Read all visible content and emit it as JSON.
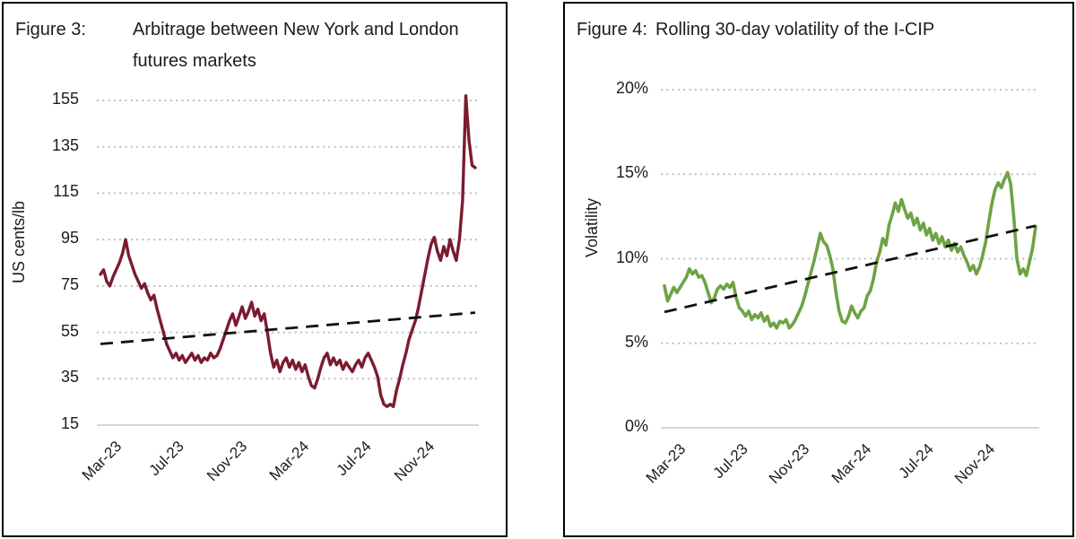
{
  "page": {
    "background": "#ffffff",
    "panel_border_color": "#000000",
    "text_color": "#1c1c1c"
  },
  "chart_data": [
    {
      "type": "line",
      "figure_label": "Figure 3:",
      "title": "Arbitrage between New York and London futures markets",
      "ylabel": "US cents/lb",
      "ytick_labels": [
        "155",
        "135",
        "115",
        "95",
        "75",
        "55",
        "35",
        "15"
      ],
      "ytick_values": [
        155,
        135,
        115,
        95,
        75,
        55,
        35,
        15
      ],
      "ylim": [
        15,
        155
      ],
      "xtick_labels": [
        "Mar-23",
        "Jul-23",
        "Nov-23",
        "Mar-24",
        "Jul-24",
        "Nov-24"
      ],
      "xtick_positions": [
        0,
        0.1667,
        0.3333,
        0.5,
        0.6667,
        0.8333
      ],
      "x_span_months": 24,
      "grid": "dotted-horizontal",
      "gridline_color": "#bdbdbd",
      "baseline_color": "#c9c9c9",
      "series": [
        {
          "color": "#7b1b2f",
          "values": [
            80,
            82,
            77,
            75,
            79,
            82,
            85,
            89,
            95,
            88,
            84,
            80,
            77,
            74,
            76,
            72,
            69,
            71,
            65,
            60,
            55,
            50,
            47,
            44,
            46,
            43,
            45,
            42,
            44,
            46,
            43,
            45,
            42,
            44,
            43,
            46,
            44,
            45,
            48,
            52,
            56,
            60,
            63,
            58,
            62,
            66,
            61,
            64,
            68,
            62,
            65,
            60,
            63,
            55,
            46,
            40,
            43,
            38,
            42,
            44,
            40,
            43,
            39,
            42,
            38,
            41,
            36,
            32,
            31,
            35,
            40,
            44,
            46,
            41,
            44,
            41,
            43,
            39,
            42,
            40,
            38,
            41,
            43,
            40,
            44,
            46,
            43,
            40,
            36,
            28,
            24,
            23,
            24,
            23,
            30,
            35,
            41,
            46,
            52,
            56,
            60,
            66,
            73,
            80,
            87,
            93,
            96,
            90,
            86,
            92,
            88,
            95,
            90,
            86,
            95,
            112,
            157,
            138,
            127,
            126
          ]
        }
      ],
      "trendline": {
        "style": "dashed",
        "color": "#111111",
        "start_value": 50,
        "end_value": 63.5
      }
    },
    {
      "type": "line",
      "figure_label": "Figure 4:",
      "title": "Rolling 30-day volatility of the I-CIP",
      "ylabel": "Volatility",
      "ytick_labels": [
        "20%",
        "15%",
        "10%",
        "5%",
        "0%"
      ],
      "ytick_values": [
        20,
        15,
        10,
        5,
        0
      ],
      "ylim": [
        0,
        20
      ],
      "xtick_labels": [
        "Mar-23",
        "Jul-23",
        "Nov-23",
        "Mar-24",
        "Jul-24",
        "Nov-24"
      ],
      "xtick_positions": [
        0,
        0.1667,
        0.3333,
        0.5,
        0.6667,
        0.8333
      ],
      "x_span_months": 24,
      "grid": "dotted-horizontal",
      "gridline_color": "#bdbdbd",
      "baseline_color": "#c9c9c9",
      "series": [
        {
          "color": "#6ea344",
          "values": [
            8.4,
            7.5,
            7.9,
            8.3,
            8.0,
            8.3,
            8.6,
            8.9,
            9.4,
            9.1,
            9.3,
            8.9,
            9.0,
            8.6,
            8.0,
            7.4,
            7.7,
            8.2,
            8.4,
            8.2,
            8.5,
            8.3,
            8.6,
            7.7,
            7.1,
            6.9,
            6.6,
            6.9,
            6.4,
            6.7,
            6.5,
            6.8,
            6.3,
            6.6,
            6.0,
            6.2,
            5.9,
            6.3,
            6.2,
            6.4,
            5.9,
            6.1,
            6.4,
            6.8,
            7.2,
            7.8,
            8.5,
            9.2,
            9.9,
            10.7,
            11.5,
            11.0,
            10.8,
            10.2,
            9.4,
            8.0,
            6.9,
            6.3,
            6.2,
            6.6,
            7.2,
            6.8,
            6.5,
            6.9,
            7.1,
            7.8,
            8.1,
            8.8,
            9.8,
            10.4,
            11.2,
            10.8,
            12.0,
            12.6,
            13.3,
            12.8,
            13.5,
            12.9,
            12.4,
            12.7,
            12.0,
            12.4,
            11.7,
            12.1,
            11.4,
            11.8,
            11.1,
            11.5,
            10.9,
            11.3,
            10.7,
            11.1,
            10.5,
            10.9,
            10.4,
            10.7,
            10.2,
            9.8,
            9.3,
            9.6,
            9.1,
            9.5,
            10.2,
            11.0,
            12.2,
            13.3,
            14.1,
            14.5,
            14.2,
            14.7,
            15.1,
            14.4,
            12.5,
            10.0,
            9.1,
            9.4,
            9.0,
            9.8,
            10.6,
            11.9
          ]
        }
      ],
      "trendline": {
        "style": "dashed",
        "color": "#111111",
        "start_value": 6.85,
        "end_value": 11.95
      }
    }
  ]
}
